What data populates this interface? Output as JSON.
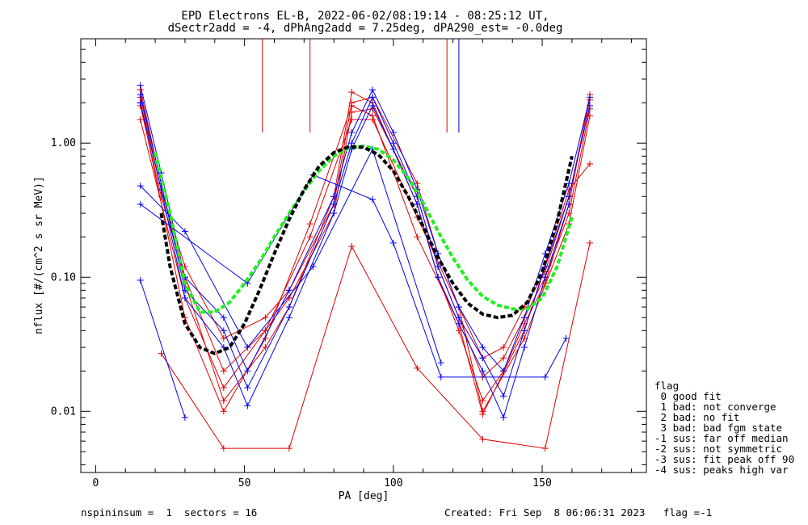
{
  "title": {
    "line1": "EPD Electrons EL-B, 2022-06-02/08:19:14 - 08:25:12 UT,",
    "line2": "dSectr2add = -4, dPhAng2add = 7.25deg, dPA290_est=  -0.0deg"
  },
  "legend": {
    "header": "flag",
    "entries": [
      " 0 good fit",
      " 1 bad: not converge",
      " 2 bad: no fit",
      " 3 bad: bad fgm state",
      "-1 sus: far off median",
      "-2 sus: not symmetric",
      "-3 sus: fit peak off 90",
      "-4 sus: peaks high var"
    ]
  },
  "footer": {
    "left": "nspininsum =  1  sectors = 16",
    "right": "Created: Fri Sep  8 06:06:31 2023   flag =-1"
  },
  "colors": {
    "red": "#e00000",
    "blue": "#0000f0",
    "green": "#22ee22",
    "black": "#000000"
  },
  "chart_data": {
    "type": "line",
    "xlabel": "PA [deg]",
    "ylabel": "nflux [#/(cm^2 s sr MeV)]",
    "xlim": [
      -5,
      185
    ],
    "ylim": [
      0.0035,
      6.0
    ],
    "yscale": "log",
    "xticks": [
      0,
      50,
      100,
      150
    ],
    "xtick_labels": [
      "0",
      "50",
      "100",
      "150"
    ],
    "yticks": [
      0.01,
      0.1,
      1.0
    ],
    "ytick_labels": [
      "0.01",
      "0.10",
      "1.00"
    ],
    "series": [
      {
        "color": "red",
        "marker": "+",
        "x": [
          15,
          22,
          30,
          43,
          57,
          65,
          80,
          86,
          93,
          108,
          115,
          122,
          130,
          137,
          144,
          151,
          159,
          166
        ],
        "y": [
          2.2,
          0.45,
          0.12,
          0.035,
          0.05,
          0.08,
          0.35,
          2.0,
          2.2,
          0.5,
          0.15,
          0.06,
          0.025,
          0.03,
          0.06,
          0.11,
          0.4,
          2.1
        ]
      },
      {
        "color": "red",
        "marker": "+",
        "x": [
          15,
          22,
          30,
          43,
          57,
          65,
          80,
          86,
          93,
          108,
          115,
          122,
          130,
          137,
          144,
          151,
          159,
          166
        ],
        "y": [
          1.9,
          0.4,
          0.1,
          0.02,
          0.04,
          0.07,
          0.3,
          1.7,
          1.8,
          0.4,
          0.12,
          0.05,
          0.018,
          0.025,
          0.05,
          0.1,
          0.3,
          1.8
        ]
      },
      {
        "color": "red",
        "marker": "+",
        "x": [
          15,
          22,
          30,
          43,
          57,
          65,
          80,
          86,
          93,
          108,
          115,
          122,
          130,
          137,
          144,
          151,
          159,
          166
        ],
        "y": [
          2.5,
          0.5,
          0.09,
          0.012,
          0.03,
          0.06,
          0.4,
          2.4,
          2.0,
          0.35,
          0.1,
          0.04,
          0.012,
          0.02,
          0.045,
          0.09,
          0.35,
          2.3
        ]
      },
      {
        "color": "red",
        "marker": "+",
        "x": [
          22,
          43,
          65,
          86,
          108,
          130,
          151,
          166
        ],
        "y": [
          0.027,
          0.0053,
          0.0053,
          0.17,
          0.021,
          0.0062,
          0.0053,
          0.18
        ]
      },
      {
        "color": "red",
        "marker": "+",
        "x": [
          15,
          30,
          43,
          57,
          72,
          86,
          93,
          108,
          122,
          130,
          144,
          159,
          166
        ],
        "y": [
          1.5,
          0.07,
          0.015,
          0.04,
          0.2,
          1.5,
          1.5,
          0.28,
          0.06,
          0.01,
          0.035,
          0.25,
          1.6
        ]
      },
      {
        "color": "red",
        "marker": "+",
        "x": [
          15,
          30,
          43,
          57,
          72,
          86,
          93,
          108,
          122,
          130,
          144,
          159,
          166
        ],
        "y": [
          2.0,
          0.05,
          0.01,
          0.035,
          0.25,
          1.9,
          1.6,
          0.2,
          0.045,
          0.0095,
          0.04,
          0.45,
          0.7
        ]
      },
      {
        "color": "blue",
        "marker": "+",
        "x": [
          15,
          22,
          30,
          43,
          51,
          65,
          80,
          86,
          93,
          100,
          108,
          115,
          122,
          130,
          137,
          144,
          151,
          159,
          166
        ],
        "y": [
          2.7,
          0.6,
          0.1,
          0.05,
          0.02,
          0.08,
          0.4,
          1.2,
          2.5,
          1.2,
          0.45,
          0.15,
          0.06,
          0.03,
          0.02,
          0.05,
          0.15,
          0.5,
          2.2
        ]
      },
      {
        "color": "blue",
        "marker": "+",
        "x": [
          15,
          22,
          30,
          43,
          51,
          65,
          80,
          86,
          93,
          100,
          108,
          115,
          122,
          130,
          137,
          144,
          151,
          159,
          166
        ],
        "y": [
          2.3,
          0.5,
          0.08,
          0.04,
          0.015,
          0.06,
          0.35,
          1.0,
          2.2,
          1.0,
          0.4,
          0.12,
          0.05,
          0.025,
          0.013,
          0.04,
          0.12,
          0.4,
          1.9
        ]
      },
      {
        "color": "blue",
        "marker": "+",
        "x": [
          15,
          22,
          30,
          43,
          51,
          65,
          80,
          86,
          93,
          100,
          108,
          115,
          122,
          130,
          137,
          144,
          151,
          159
        ],
        "y": [
          2.0,
          0.45,
          0.07,
          0.03,
          0.011,
          0.05,
          0.3,
          0.9,
          1.9,
          0.9,
          0.35,
          0.1,
          0.045,
          0.02,
          0.009,
          0.03,
          0.1,
          0.35
        ]
      },
      {
        "color": "blue",
        "marker": "+",
        "x": [
          15,
          30
        ],
        "y": [
          0.095,
          0.009
        ]
      },
      {
        "color": "blue",
        "marker": "+",
        "x": [
          15,
          51,
          73,
          93,
          100,
          116,
          151,
          158
        ],
        "y": [
          0.35,
          0.09,
          0.58,
          0.38,
          0.18,
          0.018,
          0.018,
          0.035
        ]
      },
      {
        "color": "blue",
        "marker": "+",
        "x": [
          15,
          30,
          51,
          73,
          93,
          116
        ],
        "y": [
          0.48,
          0.22,
          0.03,
          0.12,
          0.9,
          0.023
        ]
      }
    ],
    "fits": [
      {
        "color": "green",
        "style": "dashed",
        "x": [
          20,
          25,
          30,
          35,
          40,
          45,
          50,
          55,
          60,
          65,
          70,
          75,
          80,
          85,
          90,
          95,
          100,
          105,
          110,
          115,
          120,
          125,
          130,
          135,
          140,
          145,
          150,
          155,
          160
        ],
        "y": [
          0.85,
          0.3,
          0.09,
          0.055,
          0.055,
          0.065,
          0.09,
          0.13,
          0.2,
          0.3,
          0.44,
          0.62,
          0.8,
          0.92,
          0.95,
          0.9,
          0.75,
          0.55,
          0.36,
          0.22,
          0.14,
          0.095,
          0.072,
          0.062,
          0.058,
          0.058,
          0.07,
          0.12,
          0.28
        ]
      },
      {
        "color": "black",
        "style": "dashed",
        "x": [
          22,
          25,
          30,
          35,
          40,
          45,
          50,
          55,
          60,
          65,
          70,
          75,
          80,
          85,
          90,
          95,
          100,
          105,
          110,
          115,
          120,
          125,
          130,
          135,
          140,
          145,
          150,
          155,
          160
        ],
        "y": [
          0.3,
          0.12,
          0.045,
          0.03,
          0.027,
          0.03,
          0.045,
          0.08,
          0.15,
          0.27,
          0.45,
          0.67,
          0.85,
          0.94,
          0.93,
          0.82,
          0.62,
          0.4,
          0.24,
          0.14,
          0.09,
          0.064,
          0.053,
          0.05,
          0.052,
          0.065,
          0.11,
          0.26,
          0.8
        ]
      }
    ],
    "spikes": [
      {
        "color": "red",
        "x": 56
      },
      {
        "color": "red",
        "x": 72
      },
      {
        "color": "red",
        "x": 118
      },
      {
        "color": "blue",
        "x": 122
      }
    ]
  }
}
